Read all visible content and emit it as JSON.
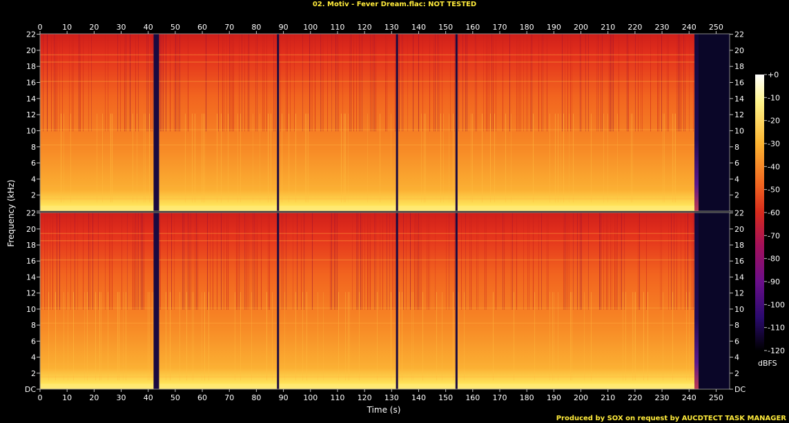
{
  "title": "02. Motiv - Fever Dream.flac: NOT TESTED",
  "footer": "Produced by SOX on request by AUCDTECT TASK MANAGER",
  "chart_data": {
    "type": "heatmap",
    "title": "02. Motiv - Fever Dream.flac: NOT TESTED",
    "xlabel": "Time (s)",
    "ylabel": "Frequency (kHz)",
    "xlim": [
      0,
      255
    ],
    "ylim": [
      0,
      22.05
    ],
    "x_ticks": [
      "0",
      "10",
      "20",
      "30",
      "40",
      "50",
      "60",
      "70",
      "80",
      "90",
      "100",
      "110",
      "120",
      "130",
      "140",
      "150",
      "160",
      "170",
      "180",
      "190",
      "200",
      "210",
      "220",
      "230",
      "240",
      "250"
    ],
    "y_ticks": [
      "DC",
      "2",
      "4",
      "6",
      "8",
      "10",
      "12",
      "14",
      "16",
      "18",
      "20",
      "22"
    ],
    "channels": 2,
    "audio_end_s": 242,
    "dropouts_s": [
      43,
      88,
      132,
      154
    ],
    "colorbar": {
      "label": "dBFS",
      "ticks": [
        "+0",
        "-10",
        "-20",
        "-30",
        "-40",
        "-50",
        "-60",
        "-70",
        "-80",
        "-90",
        "-100",
        "-110",
        "-120"
      ],
      "range": [
        0,
        -120
      ]
    },
    "colors": {
      "text": "#ffeb3b",
      "background": "#000000"
    }
  }
}
